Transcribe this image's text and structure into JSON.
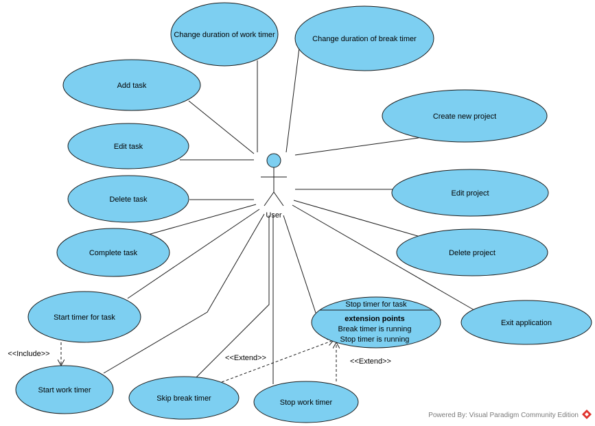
{
  "actor": {
    "name": "User"
  },
  "use_cases": {
    "change_work": "Change duration of work timer",
    "change_break": "Change duration of break timer",
    "add_task": "Add task",
    "create_project": "Create new project",
    "edit_task": "Edit task",
    "delete_task": "Delete task",
    "edit_project": "Edit project",
    "complete_task": "Complete task",
    "delete_project": "Delete project",
    "start_timer_task": "Start timer for task",
    "exit_app": "Exit application",
    "start_work": "Start work timer",
    "skip_break": "Skip break timer",
    "stop_work": "Stop work timer",
    "stop_task": "Stop timer for task"
  },
  "extension_points": {
    "title": "extension points",
    "items": [
      "Break timer is running",
      "Stop timer is running"
    ]
  },
  "relations": {
    "include": "<<Include>>",
    "extend_1": "<<Extend>>",
    "extend_2": "<<Extend>>"
  },
  "footer": {
    "powered_by": "Powered By: Visual Paradigm Community Edition"
  },
  "colors": {
    "use_case_fill": "#7dcff1",
    "line": "#1a1a1a",
    "logo_red": "#e0322d"
  }
}
